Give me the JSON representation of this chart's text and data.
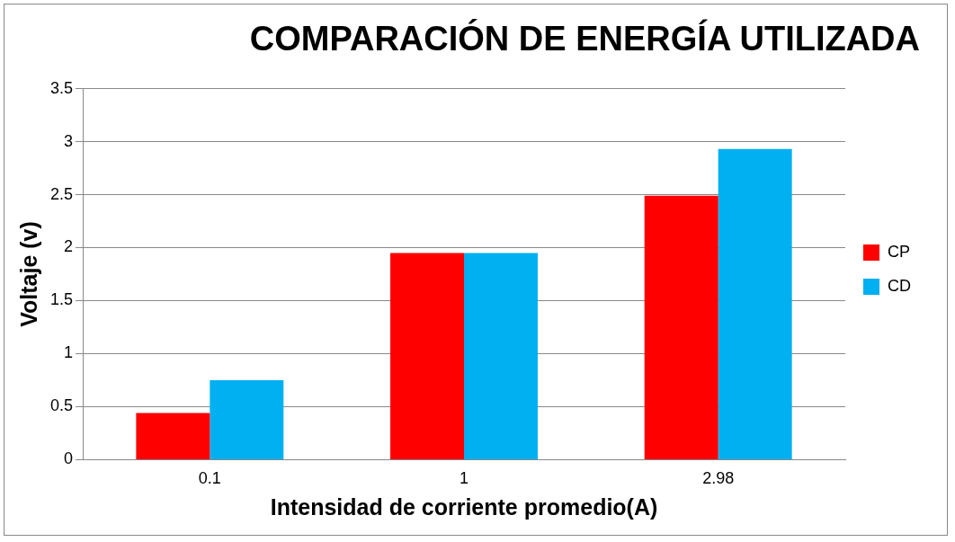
{
  "chart_data": {
    "type": "bar",
    "title": "COMPARACIÓN DE ENERGÍA UTILIZADA",
    "xlabel": "Intensidad de corriente promedio(A)",
    "ylabel": "Voltaje (v)",
    "categories": [
      "0.1",
      "1",
      "2.98"
    ],
    "series": [
      {
        "name": "CP",
        "color": "#ff0000",
        "values": [
          0.44,
          1.95,
          2.49
        ]
      },
      {
        "name": "CD",
        "color": "#00b0f0",
        "values": [
          0.75,
          1.95,
          2.93
        ]
      }
    ],
    "ylim": [
      0,
      3.5
    ],
    "yticks": [
      0,
      0.5,
      1,
      1.5,
      2,
      2.5,
      3,
      3.5
    ],
    "grid": "y",
    "legend": "right"
  }
}
